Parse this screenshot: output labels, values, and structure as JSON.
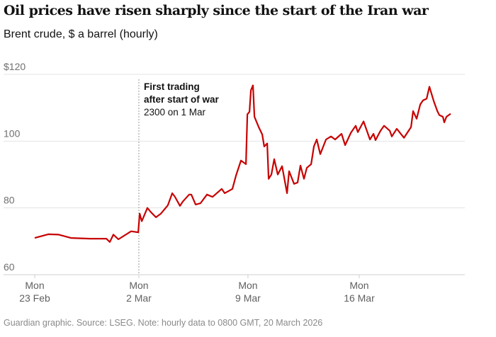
{
  "chart_data": {
    "type": "line",
    "title": "Oil prices have risen sharply since the start of the Iran war",
    "subtitle": "Brent crude, $ a barrel (hourly)",
    "xlabel": "",
    "ylabel": "",
    "ylim": [
      60,
      120
    ],
    "xlim": [
      0,
      26.8
    ],
    "x_unit": "approx. days since Mon 23 Feb (trading-time axis)",
    "yticks": [
      {
        "value": 120,
        "label": "$120"
      },
      {
        "value": 100,
        "label": "100"
      },
      {
        "value": 80,
        "label": "80"
      },
      {
        "value": 60,
        "label": "60"
      }
    ],
    "xticks": [
      {
        "value": 0,
        "line1": "Mon",
        "line2": "23 Feb"
      },
      {
        "value": 6.71,
        "line1": "Mon",
        "line2": "2 Mar"
      },
      {
        "value": 13.74,
        "line1": "Mon",
        "line2": "9 Mar"
      },
      {
        "value": 20.91,
        "line1": "Mon",
        "line2": "16 Mar"
      }
    ],
    "grid": true,
    "line_color": "#c70000",
    "series": [
      {
        "name": "Brent crude",
        "x": [
          0,
          0.87,
          1.55,
          2.33,
          3.56,
          4.61,
          4.84,
          5.07,
          5.39,
          6.21,
          6.67,
          6.76,
          6.9,
          7.26,
          7.49,
          7.81,
          8.13,
          8.58,
          8.86,
          9.04,
          9.36,
          9.54,
          9.95,
          10.09,
          10.37,
          10.68,
          11.1,
          11.46,
          12.05,
          12.24,
          12.74,
          12.97,
          13.29,
          13.61,
          13.7,
          13.84,
          13.93,
          14.06,
          14.16,
          14.43,
          14.66,
          14.79,
          14.98,
          15.07,
          15.25,
          15.43,
          15.66,
          15.94,
          16.26,
          16.39,
          16.71,
          16.94,
          17.12,
          17.35,
          17.53,
          17.81,
          17.99,
          18.17,
          18.4,
          18.77,
          19.09,
          19.36,
          19.77,
          20,
          20.37,
          20.68,
          20.82,
          21.19,
          21.6,
          21.83,
          21.96,
          22.28,
          22.51,
          22.88,
          23.01,
          23.33,
          23.79,
          24.25,
          24.38,
          24.61,
          24.84,
          25.02,
          25.25,
          25.43,
          25.71,
          25.94,
          26.07,
          26.3,
          26.39,
          26.53,
          26.8
        ],
        "values": [
          71,
          72.1,
          72,
          71,
          70.8,
          70.8,
          69.8,
          72,
          70.6,
          73,
          72.7,
          78.3,
          76,
          80,
          78.7,
          77.2,
          78.3,
          80.8,
          84.4,
          83.3,
          80.6,
          81.9,
          84,
          84,
          81,
          81.4,
          84,
          83.3,
          85.7,
          84.4,
          85.7,
          89.7,
          94.2,
          93.1,
          108,
          108.8,
          115.2,
          116.7,
          107.3,
          104.2,
          102,
          98.4,
          99.3,
          88.7,
          90,
          94.6,
          90,
          92.5,
          84.4,
          91,
          87.2,
          87.6,
          92.7,
          88.7,
          92,
          93.1,
          98.4,
          100.5,
          96.1,
          100.5,
          101.4,
          100.5,
          102.2,
          98.8,
          102.5,
          104.6,
          102.7,
          105.9,
          100.5,
          102.2,
          100.3,
          103.1,
          104.6,
          103.1,
          101.4,
          103.7,
          101,
          104.2,
          109,
          106.7,
          111,
          112.2,
          112.7,
          116.3,
          112,
          109,
          107.8,
          107.3,
          105.6,
          107.3,
          108.2
        ]
      }
    ],
    "annotations": [
      {
        "x": 6.71,
        "line1": "First trading",
        "line2": "after start of war",
        "line3": "2300 on 1 Mar"
      }
    ],
    "source": "Guardian graphic. Source: LSEG. Note: hourly data to 0800 GMT, 20 March 2026"
  }
}
